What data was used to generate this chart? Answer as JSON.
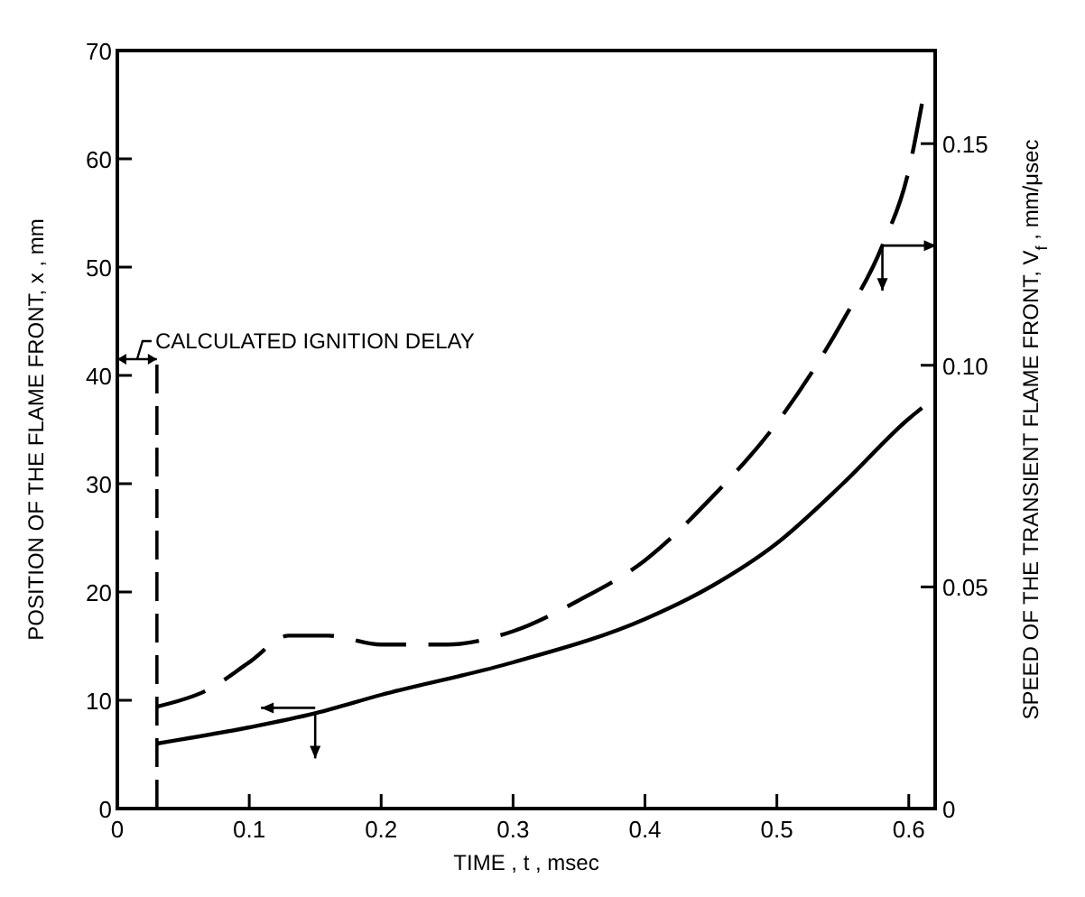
{
  "chart_data": {
    "type": "line",
    "xlabel": "TIME , t , msec",
    "ylabel": "POSITION OF THE FLAME FRONT, x , mm",
    "y2label": "SPEED OF THE TRANSIENT FLAME FRONT, V$_{f}$ , mm/μsec",
    "xlim": [
      0,
      0.62
    ],
    "xticks": [
      0,
      0.1,
      0.2,
      0.3,
      0.4,
      0.5,
      0.6
    ],
    "ylim": [
      0,
      70
    ],
    "yticks": [
      0,
      10,
      20,
      30,
      40,
      50,
      60,
      70
    ],
    "y2lim": [
      0,
      0.171
    ],
    "y2ticks": [
      0,
      {
        "value": 0.05,
        "label": "0.05"
      },
      {
        "value": 0.1,
        "label": "0.10"
      },
      0.15
    ],
    "grid": false,
    "ref_lines": [
      {
        "axis": "x",
        "value": 0.03,
        "label": "CALCULATED IGNITION DELAY",
        "line_style": "dashed",
        "color": "#000000"
      }
    ],
    "series": [
      {
        "color": "#000000",
        "line_style": "solid",
        "x": [
          0.03,
          0.1,
          0.15,
          0.2,
          0.3,
          0.4,
          0.45,
          0.5,
          0.55,
          0.6,
          0.61
        ],
        "values": [
          6,
          7.5,
          8.8,
          10.5,
          13.5,
          17.5,
          20.5,
          24.5,
          30,
          36,
          37
        ]
      },
      {
        "color": "#000000",
        "line_style": "dashed",
        "axis": "y2",
        "x": [
          0.03,
          0.07,
          0.1,
          0.13,
          0.16,
          0.2,
          0.25,
          0.3,
          0.35,
          0.4,
          0.45,
          0.5,
          0.55,
          0.58,
          0.6,
          0.61
        ],
        "values": [
          0.023,
          0.027,
          0.033,
          0.039,
          0.039,
          0.037,
          0.037,
          0.04,
          0.047,
          0.056,
          0.07,
          0.087,
          0.11,
          0.127,
          0.144,
          0.159
        ]
      }
    ]
  }
}
